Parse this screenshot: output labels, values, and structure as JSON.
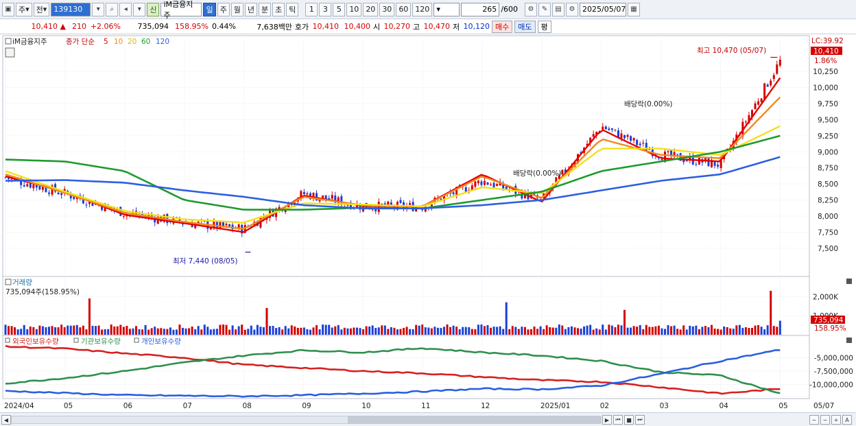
{
  "toolbar": {
    "period_main": "주",
    "prev_label": "전",
    "code": "139130",
    "badge_new": "신",
    "stock_name": "iM금융지주",
    "periods": [
      "일",
      "주",
      "월",
      "년",
      "분",
      "초",
      "틱"
    ],
    "intervals": [
      "1",
      "3",
      "5",
      "10",
      "20",
      "30",
      "60",
      "120"
    ],
    "count": "265",
    "count_max": "/600",
    "date": "2025/05/07"
  },
  "quote": {
    "price": "10,410",
    "change": "210",
    "change_pct": "+2.06%",
    "volume": "735,094",
    "volume_ratio": "158.95%",
    "turnover": "0.44%",
    "amount": "7,638백만",
    "bid_label": "호가",
    "ask": "10,410",
    "bid": "10,400",
    "open_label": "시",
    "open": "10,270",
    "high_label": "고",
    "high": "10,470",
    "low_label": "저",
    "low": "10,120",
    "buy_label": "매수",
    "sell_label": "매도",
    "avg_label": "평"
  },
  "price_panel": {
    "title": "iM금융지주",
    "ma_label": "종가 단순",
    "ma_periods": [
      "5",
      "10",
      "20",
      "60",
      "120"
    ],
    "lc_label": "LC:39.92",
    "current_price": "10,410",
    "current_pct": "1.86%",
    "high_annotation": "최고 10,470 (05/07)",
    "low_annotation": "최저 7,440 (08/05)",
    "dividend_1": "배당락(0.00%)",
    "dividend_2": "배당락(0.00%)"
  },
  "volume_panel": {
    "title": "거래량",
    "current": "735,094주(158.95%)",
    "current_tag": "735,094",
    "current_pct_tag": "158.95%"
  },
  "holdings_panel": {
    "series_labels": [
      "외국인보유수량",
      "기관보유수량",
      "개인보유수량"
    ]
  },
  "x_axis_labels": [
    "2024/04",
    "05",
    "06",
    "07",
    "08",
    "09",
    "10",
    "11",
    "12",
    "2025/01",
    "02",
    "03",
    "04",
    "05",
    "05/07"
  ],
  "colors": {
    "up": "#d40000",
    "down": "#1a3fd6",
    "ma5": "#e60000",
    "ma10": "#f08a1c",
    "ma20": "#f2e01c",
    "ma60": "#1e9a2e",
    "ma120": "#2e5fe0",
    "foreign": "#d62020",
    "institution": "#2f8f4e",
    "individual": "#2a5fe0"
  },
  "chart_data": [
    {
      "type": "line",
      "title": "iM금융지주",
      "ylim": [
        7200,
        10700
      ],
      "y_ticks": [
        "7,500",
        "7,750",
        "8,000",
        "8,250",
        "8,500",
        "8,750",
        "9,000",
        "9,250",
        "9,500",
        "9,750",
        "10,000",
        "10,250"
      ],
      "y_tick_values": [
        7500,
        7750,
        8000,
        8250,
        8500,
        8750,
        9000,
        9250,
        9500,
        9750,
        10000,
        10250
      ],
      "x_months": [
        "2024/04",
        "05",
        "06",
        "07",
        "08",
        "09",
        "10",
        "11",
        "12",
        "2025/01",
        "02",
        "03",
        "04",
        "05"
      ],
      "close_by_month": [
        8600,
        8350,
        8050,
        7900,
        7800,
        8350,
        8150,
        8150,
        8550,
        8250,
        9400,
        8950,
        8800,
        10410
      ],
      "series": [
        {
          "name": "5",
          "values": [
            8620,
            8380,
            8020,
            7890,
            7750,
            8320,
            8160,
            8150,
            8650,
            8220,
            9350,
            8900,
            8850,
            10150
          ]
        },
        {
          "name": "10",
          "values": [
            8650,
            8360,
            8050,
            7910,
            7800,
            8300,
            8170,
            8150,
            8620,
            8280,
            9200,
            8950,
            8900,
            9850
          ]
        },
        {
          "name": "20",
          "values": [
            8700,
            8380,
            8080,
            7950,
            7900,
            8200,
            8180,
            8150,
            8450,
            8350,
            9050,
            9050,
            8950,
            9400
          ]
        },
        {
          "name": "60",
          "values": [
            8880,
            8850,
            8700,
            8250,
            8100,
            8100,
            8130,
            8120,
            8250,
            8380,
            8700,
            8850,
            9000,
            9250
          ]
        },
        {
          "name": "120",
          "values": [
            8550,
            8560,
            8520,
            8400,
            8300,
            8170,
            8120,
            8120,
            8170,
            8250,
            8400,
            8550,
            8650,
            8920
          ]
        }
      ],
      "annotations": [
        {
          "label": "최고 10,470 (05/07)",
          "value": 10470
        },
        {
          "label": "최저 7,440 (08/05)",
          "value": 7440
        }
      ]
    },
    {
      "type": "bar",
      "title": "거래량",
      "y_ticks": [
        "1,000K",
        "2,000K"
      ],
      "y_tick_values": [
        1000,
        2000
      ],
      "ylim": [
        0,
        2800
      ],
      "peaks": [
        {
          "month": "2024/04",
          "value": 430
        },
        {
          "month": "05",
          "value": 1900
        },
        {
          "month": "08",
          "value": 1400
        },
        {
          "month": "12",
          "value": 1700
        },
        {
          "month": "02",
          "value": 1300
        },
        {
          "month": "05",
          "value": 2300
        }
      ],
      "current": 735
    },
    {
      "type": "line",
      "title": "외국인보유수량 · 기관보유수량 · 개인보유수량",
      "y_ticks": [
        "-5,000,000",
        "-7,500,000",
        "-10,000,000"
      ],
      "y_tick_values": [
        -5000000,
        -7500000,
        -10000000
      ],
      "ylim": [
        -12500000,
        -2500000
      ],
      "x_months": [
        "2024/04",
        "05",
        "06",
        "07",
        "08",
        "09",
        "10",
        "11",
        "12",
        "2025/01",
        "02",
        "03",
        "04",
        "05"
      ],
      "series": [
        {
          "name": "외국인보유수량",
          "values": [
            -2900000,
            -3300000,
            -4200000,
            -5000000,
            -6300000,
            -6900000,
            -7500000,
            -7900000,
            -8600000,
            -9200000,
            -9500000,
            -10500000,
            -11700000,
            -10800000
          ]
        },
        {
          "name": "기관보유수량",
          "values": [
            -9800000,
            -8800000,
            -7500000,
            -5900000,
            -4600000,
            -3600000,
            -4000000,
            -3200000,
            -4000000,
            -4600000,
            -5600000,
            -7700000,
            -8300000,
            -11700000
          ]
        },
        {
          "name": "개인보유수량",
          "values": [
            -11200000,
            -11600000,
            -12000000,
            -12100000,
            -12200000,
            -12000000,
            -11700000,
            -11300000,
            -10800000,
            -10900000,
            -10200000,
            -8000000,
            -5600000,
            -3500000
          ]
        }
      ]
    }
  ]
}
